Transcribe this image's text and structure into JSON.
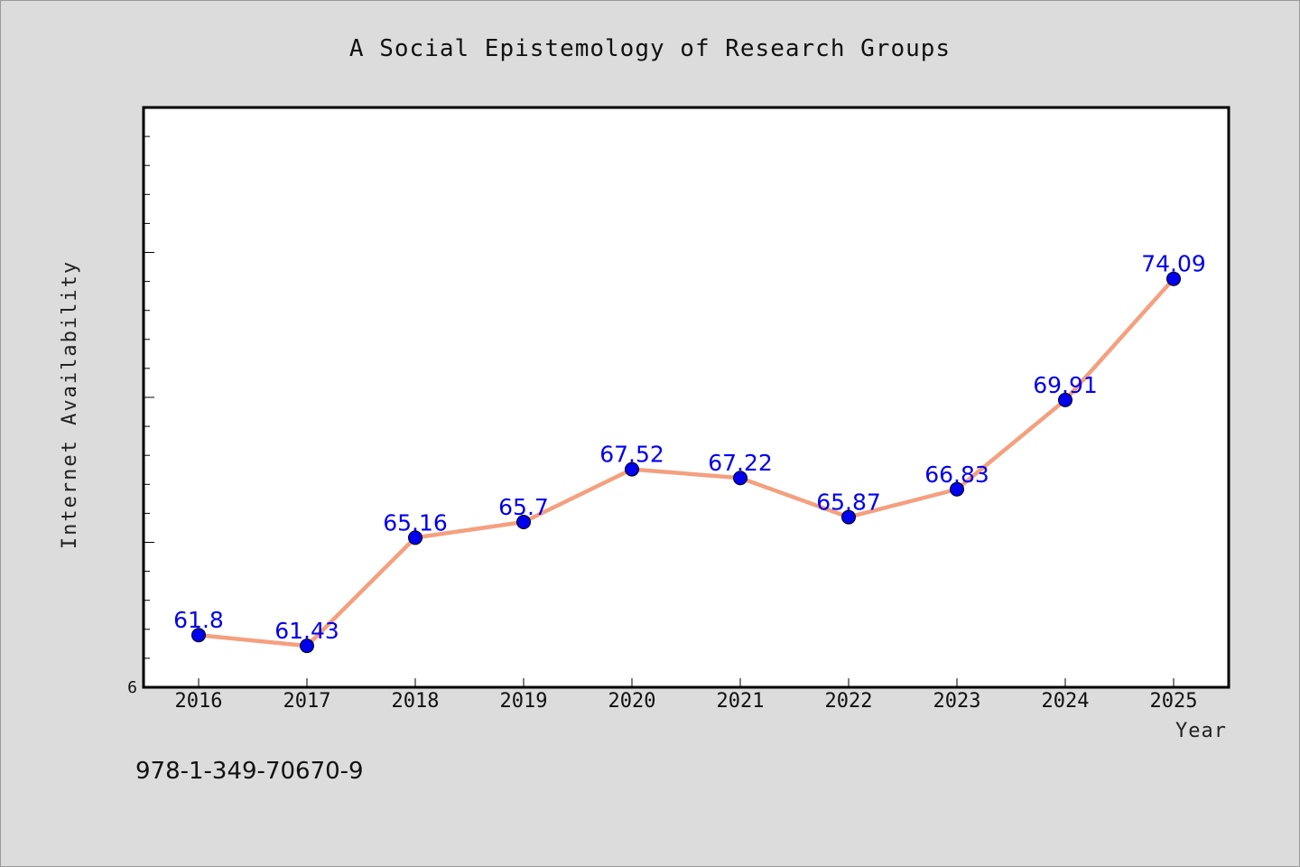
{
  "chart_data": {
    "type": "line",
    "title": "A Social Epistemology of Research Groups",
    "xlabel": "Year",
    "ylabel": "Internet Availability",
    "x": [
      "2016",
      "2017",
      "2018",
      "2019",
      "2020",
      "2021",
      "2022",
      "2023",
      "2024",
      "2025"
    ],
    "series": [
      {
        "values": [
          61.8,
          61.43,
          65.16,
          65.7,
          67.52,
          67.22,
          65.87,
          66.83,
          69.91,
          74.09
        ],
        "labels": [
          "61.8",
          "61.43",
          "65.16",
          "65.7",
          "67.52",
          "67.22",
          "65.87",
          "66.83",
          "69.91",
          "74.09"
        ]
      }
    ],
    "ylim": [
      60,
      80
    ],
    "y_tick_label_shown": "6",
    "grid": false,
    "line_color": "#f4a07f",
    "marker_color": "#0000ee"
  },
  "footer": {
    "isbn": "978-1-349-70670-9"
  }
}
